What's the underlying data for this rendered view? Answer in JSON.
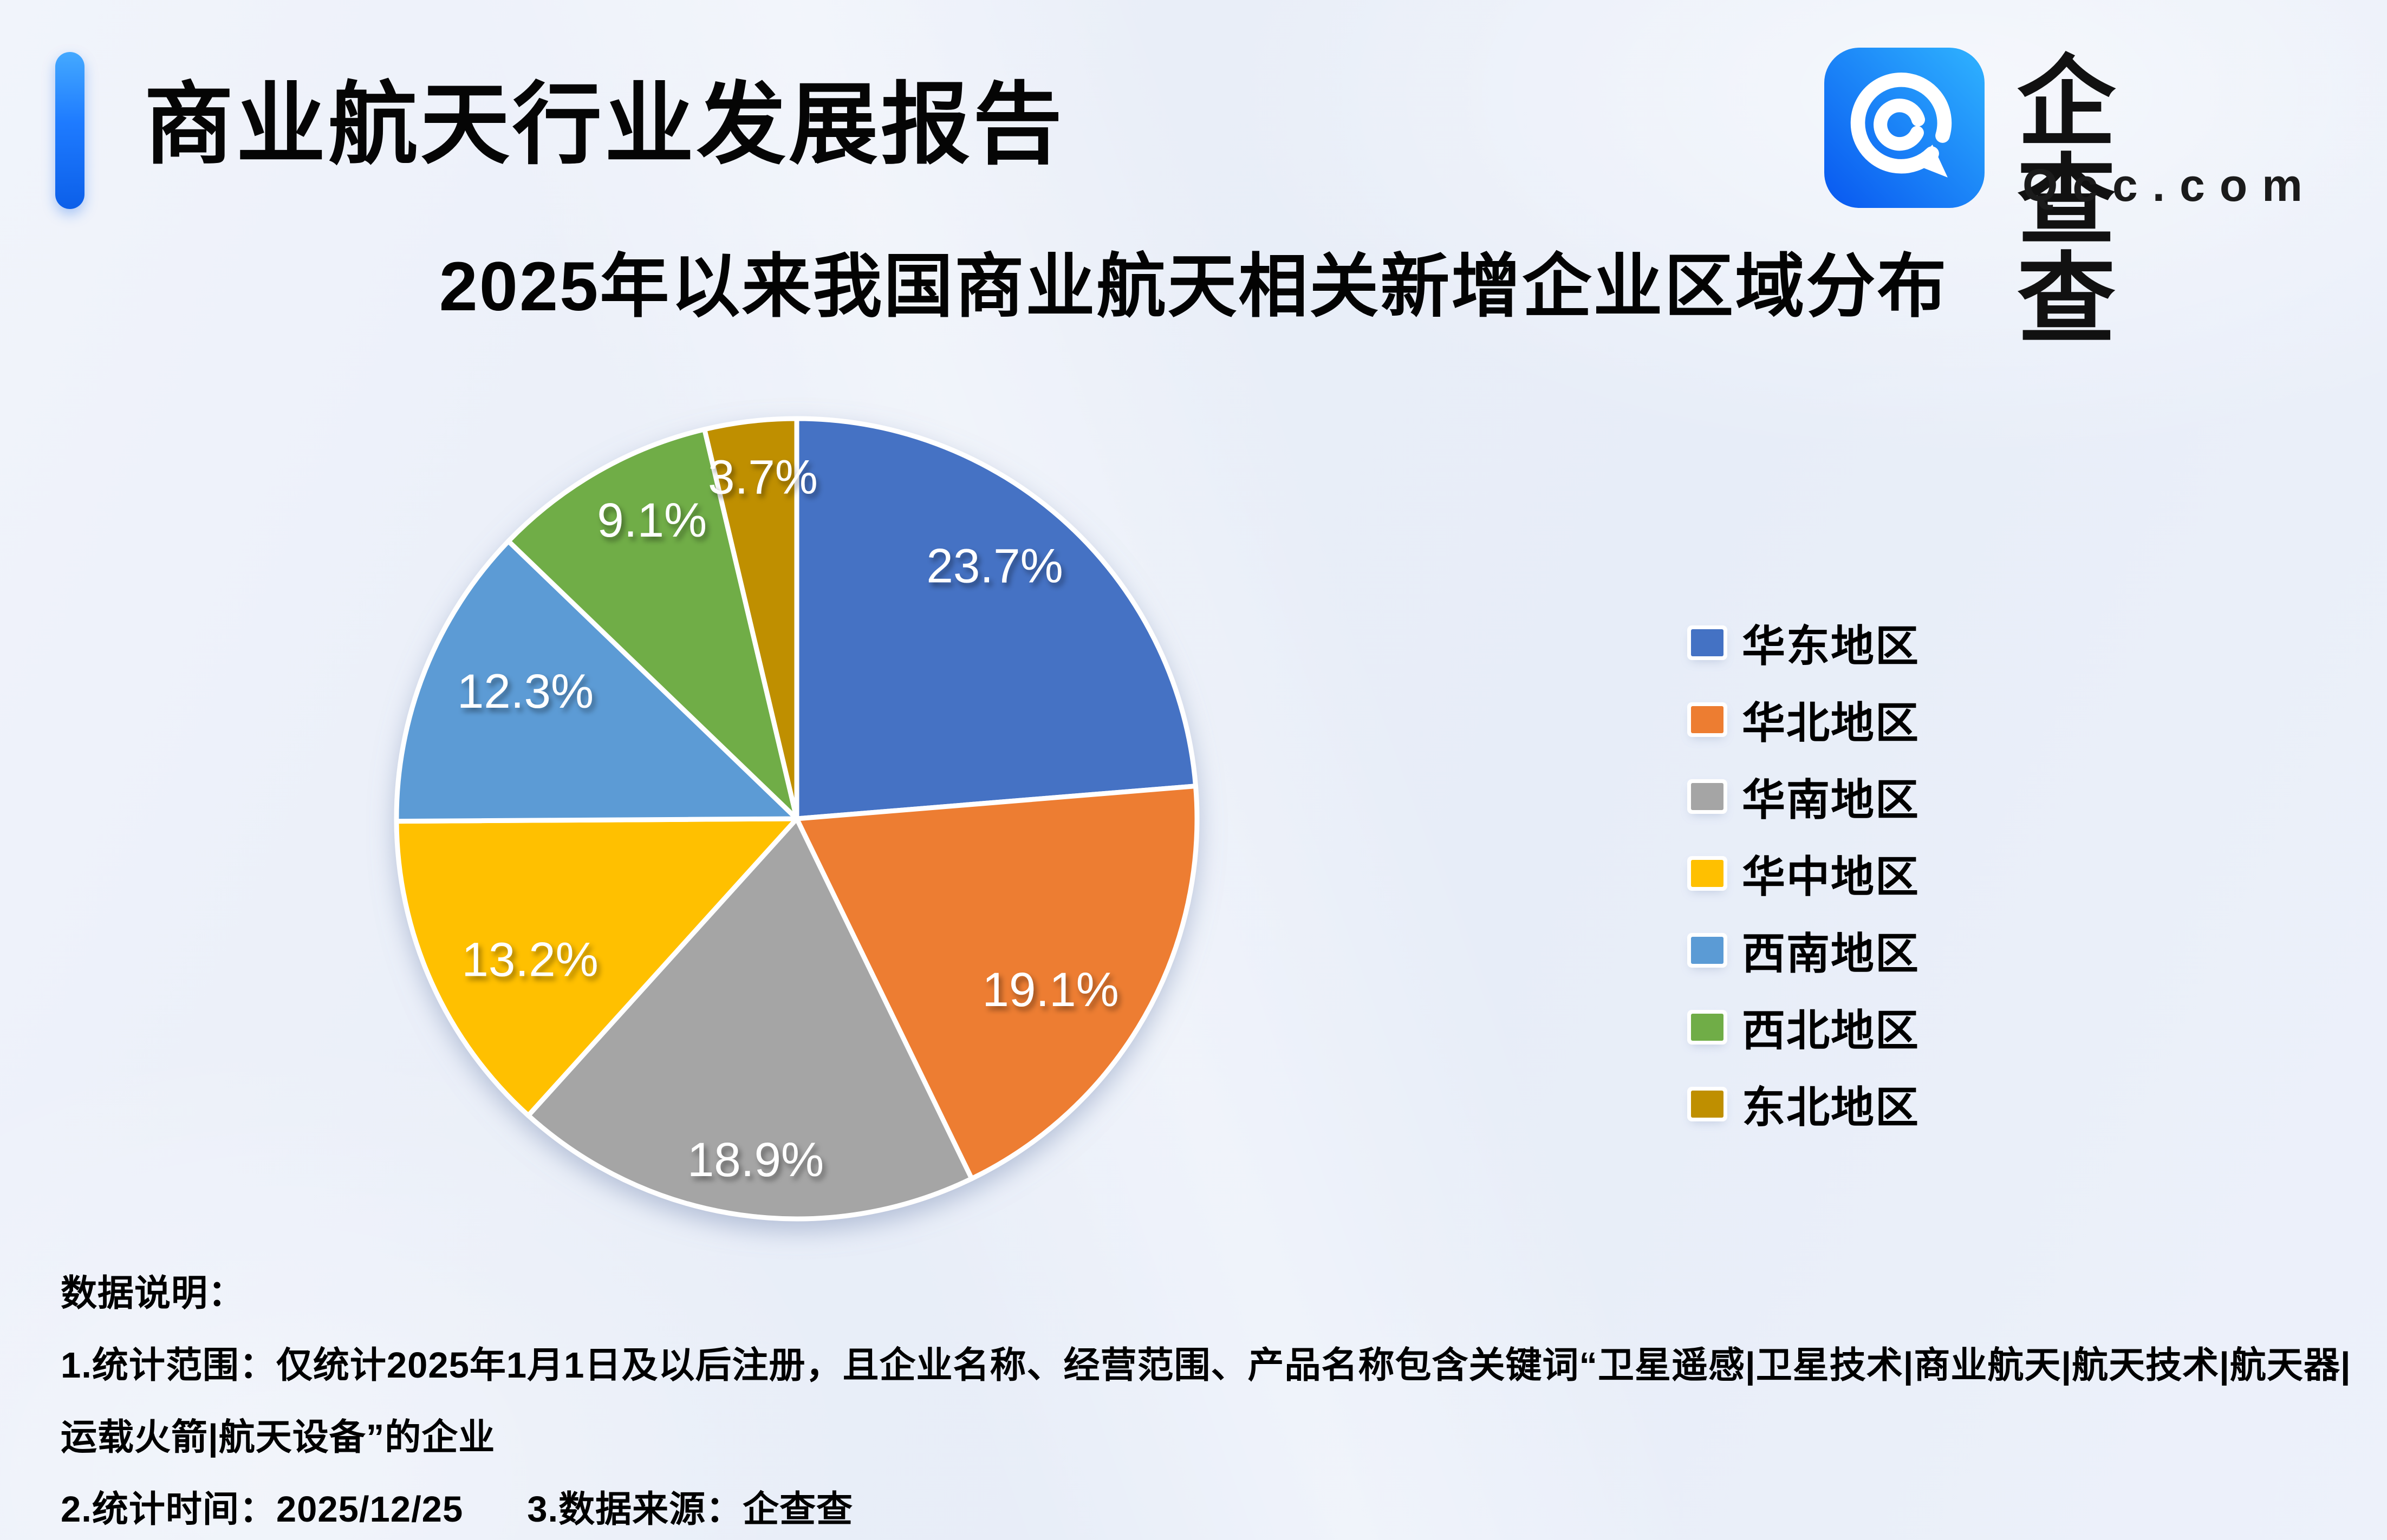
{
  "header": {
    "report_title": "商业航天行业发展报告",
    "brand_name": "企查查",
    "brand_domain": "Qcc.com"
  },
  "chart_data": {
    "type": "pie",
    "title": "2025年以来我国商业航天相关新增企业区域分布",
    "unit": "%",
    "start_angle_deg": 0,
    "direction": "clockwise",
    "legend_position": "right",
    "label_style": "white-inside-with-shadow",
    "slices": [
      {
        "label": "华东地区",
        "value": 23.7,
        "display": "23.7%",
        "color": "#4472C4"
      },
      {
        "label": "华北地区",
        "value": 19.1,
        "display": "19.1%",
        "color": "#ED7D31"
      },
      {
        "label": "华南地区",
        "value": 18.9,
        "display": "18.9%",
        "color": "#A5A5A5"
      },
      {
        "label": "华中地区",
        "value": 13.2,
        "display": "13.2%",
        "color": "#FFC000"
      },
      {
        "label": "西南地区",
        "value": 12.3,
        "display": "12.3%",
        "color": "#5B9BD5"
      },
      {
        "label": "西北地区",
        "value": 9.1,
        "display": "9.1%",
        "color": "#70AD47"
      },
      {
        "label": "东北地区",
        "value": 3.7,
        "display": "3.7%",
        "color": "#BF8F00"
      }
    ]
  },
  "notes": {
    "heading": "数据说明：",
    "scope": "1.统计范围：仅统计2025年1月1日及以后注册，且企业名称、经营范围、产品名称包含关键词“卫星遥感|卫星技术|商业航天|航天技术|航天器|运载火箭|航天设备”的企业",
    "stat_time": "2.统计时间：2025/12/25",
    "source": "3.数据来源：企查查"
  },
  "colors": {
    "accent_blue": "#1273EB",
    "logo_gradient_start": "#0857F0",
    "logo_gradient_end": "#2FB3FF",
    "background": "#EDF1FA"
  }
}
